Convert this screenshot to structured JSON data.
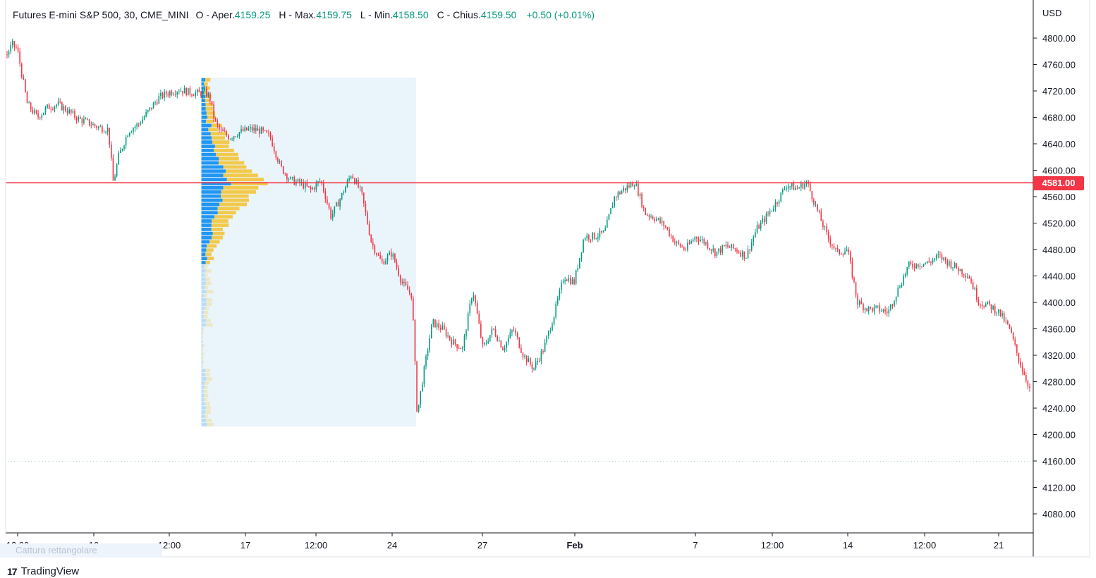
{
  "legend": {
    "symbol": "Futures E-mini S&P 500, 30, CME_MINI",
    "open_label": "O - Aper.",
    "open": "4159.25",
    "high_label": "H - Max.",
    "high": "4159.75",
    "low_label": "L - Min.",
    "low": "4158.50",
    "close_label": "C - Chius.",
    "close": "4159.50",
    "change": "+0.50 (+0.01%)"
  },
  "currency": "USD",
  "hline_label": "4581.00",
  "watermark_text": "Cattura rettangolare",
  "brand": {
    "logo": "17",
    "name": "TradingView"
  },
  "colors": {
    "up": "#089981",
    "down": "#f23645",
    "line": "#f23645",
    "vp_blue": "#2196f3",
    "vp_yellow": "#f2c94c",
    "vp_area": "#eaf4fb"
  },
  "chart_data": {
    "type": "candlestick",
    "ylim": [
      4050,
      4810
    ],
    "y_ticks": [
      "4800.00",
      "4760.00",
      "4720.00",
      "4680.00",
      "4640.00",
      "4600.00",
      "4560.00",
      "4520.00",
      "4480.00",
      "4440.00",
      "4400.00",
      "4360.00",
      "4320.00",
      "4280.00",
      "4240.00",
      "4200.00",
      "4160.00",
      "4120.00",
      "4080.00"
    ],
    "x_ticks": [
      "12:00",
      "10",
      "12:00",
      "17",
      "12:00",
      "24",
      "27",
      "Feb",
      "7",
      "12:00",
      "14",
      "12:00",
      "21"
    ],
    "horizontal_line": 4581.0,
    "last_price_dotted": 4159.5,
    "volume_profile": {
      "from_index": 0.19,
      "to_index": 0.4,
      "low": 4212,
      "high": 4740
    },
    "path_points": [
      [
        0,
        4775
      ],
      [
        0.5,
        4790
      ],
      [
        1,
        4784
      ],
      [
        2,
        4700
      ],
      [
        3,
        4680
      ],
      [
        4,
        4695
      ],
      [
        5,
        4700
      ],
      [
        6,
        4690
      ],
      [
        7,
        4678
      ],
      [
        8,
        4672
      ],
      [
        9,
        4665
      ],
      [
        10,
        4662
      ],
      [
        10.5,
        4580
      ],
      [
        11,
        4620
      ],
      [
        12,
        4660
      ],
      [
        13,
        4670
      ],
      [
        14,
        4690
      ],
      [
        15,
        4710
      ],
      [
        16,
        4718
      ],
      [
        17,
        4722
      ],
      [
        18,
        4718
      ],
      [
        19,
        4716
      ],
      [
        19.5,
        4718
      ],
      [
        20,
        4712
      ],
      [
        20.5,
        4675
      ],
      [
        21,
        4660
      ],
      [
        22,
        4650
      ],
      [
        23,
        4658
      ],
      [
        24,
        4662
      ],
      [
        25,
        4660
      ],
      [
        26,
        4650
      ],
      [
        27,
        4605
      ],
      [
        28,
        4585
      ],
      [
        29,
        4580
      ],
      [
        30,
        4570
      ],
      [
        31,
        4585
      ],
      [
        32,
        4530
      ],
      [
        33,
        4560
      ],
      [
        34,
        4595
      ],
      [
        35,
        4565
      ],
      [
        36,
        4490
      ],
      [
        37,
        4460
      ],
      [
        38,
        4475
      ],
      [
        39,
        4430
      ],
      [
        40,
        4410
      ],
      [
        40.5,
        4230
      ],
      [
        41,
        4280
      ],
      [
        42,
        4370
      ],
      [
        43,
        4360
      ],
      [
        44,
        4340
      ],
      [
        45,
        4330
      ],
      [
        46,
        4420
      ],
      [
        47,
        4330
      ],
      [
        48,
        4360
      ],
      [
        49,
        4330
      ],
      [
        50,
        4360
      ],
      [
        51,
        4320
      ],
      [
        52,
        4300
      ],
      [
        53,
        4330
      ],
      [
        54,
        4380
      ],
      [
        55,
        4440
      ],
      [
        56,
        4430
      ],
      [
        57,
        4500
      ],
      [
        58,
        4500
      ],
      [
        59,
        4505
      ],
      [
        60,
        4560
      ],
      [
        61,
        4572
      ],
      [
        62,
        4582
      ],
      [
        62.5,
        4560
      ],
      [
        63,
        4535
      ],
      [
        64,
        4528
      ],
      [
        65,
        4515
      ],
      [
        66,
        4490
      ],
      [
        67,
        4480
      ],
      [
        68,
        4500
      ],
      [
        69,
        4490
      ],
      [
        70,
        4475
      ],
      [
        71,
        4485
      ],
      [
        72,
        4480
      ],
      [
        73,
        4470
      ],
      [
        74,
        4510
      ],
      [
        75,
        4530
      ],
      [
        76,
        4552
      ],
      [
        77,
        4578
      ],
      [
        78,
        4572
      ],
      [
        79,
        4582
      ],
      [
        80,
        4540
      ],
      [
        81,
        4500
      ],
      [
        82,
        4475
      ],
      [
        83,
        4480
      ],
      [
        84,
        4400
      ],
      [
        85,
        4390
      ],
      [
        86,
        4390
      ],
      [
        87,
        4385
      ],
      [
        88,
        4420
      ],
      [
        89,
        4455
      ],
      [
        90,
        4458
      ],
      [
        91,
        4460
      ],
      [
        92,
        4470
      ],
      [
        93,
        4460
      ],
      [
        94,
        4450
      ],
      [
        95,
        4440
      ],
      [
        96,
        4400
      ],
      [
        97,
        4395
      ],
      [
        98,
        4385
      ],
      [
        99,
        4360
      ],
      [
        100,
        4310
      ],
      [
        101,
        4270
      ]
    ]
  }
}
